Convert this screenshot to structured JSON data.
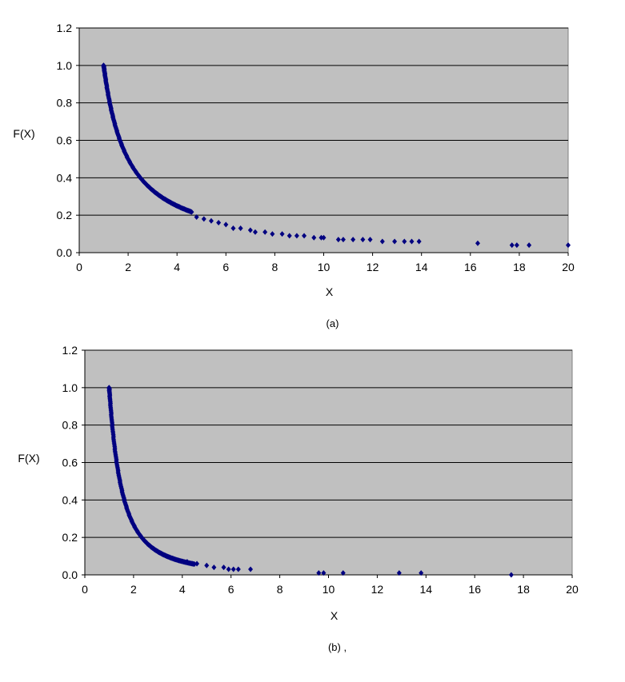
{
  "chart_data": [
    {
      "type": "scatter",
      "caption": "(a)",
      "xlabel": "X",
      "ylabel": "F(X)",
      "xlim": [
        0,
        20
      ],
      "ylim": [
        0,
        1.2
      ],
      "xticks": [
        "0",
        "2",
        "4",
        "6",
        "8",
        "10",
        "12",
        "14",
        "16",
        "18",
        "20"
      ],
      "yticks": [
        "0.0",
        "0.2",
        "0.4",
        "0.6",
        "0.8",
        "1.0",
        "1.2"
      ],
      "grid": "horizontal",
      "plot_color": "#c0c0c0",
      "marker_color": "#000080",
      "curve_exponent": 1.0,
      "curve_x_range": [
        1.0,
        4.6
      ],
      "points": [
        [
          4.8,
          0.19
        ],
        [
          5.1,
          0.18
        ],
        [
          5.4,
          0.17
        ],
        [
          5.7,
          0.16
        ],
        [
          6.0,
          0.15
        ],
        [
          6.3,
          0.13
        ],
        [
          6.6,
          0.13
        ],
        [
          7.0,
          0.12
        ],
        [
          7.2,
          0.11
        ],
        [
          7.6,
          0.11
        ],
        [
          7.9,
          0.1
        ],
        [
          8.3,
          0.1
        ],
        [
          8.6,
          0.09
        ],
        [
          8.9,
          0.09
        ],
        [
          9.2,
          0.09
        ],
        [
          9.6,
          0.08
        ],
        [
          9.9,
          0.08
        ],
        [
          10.0,
          0.08
        ],
        [
          10.6,
          0.07
        ],
        [
          10.8,
          0.07
        ],
        [
          11.2,
          0.07
        ],
        [
          11.6,
          0.07
        ],
        [
          11.9,
          0.07
        ],
        [
          12.4,
          0.06
        ],
        [
          12.9,
          0.06
        ],
        [
          13.3,
          0.06
        ],
        [
          13.6,
          0.06
        ],
        [
          13.9,
          0.06
        ],
        [
          16.3,
          0.05
        ],
        [
          17.7,
          0.04
        ],
        [
          17.9,
          0.04
        ],
        [
          18.4,
          0.04
        ],
        [
          20.0,
          0.04
        ]
      ]
    },
    {
      "type": "scatter",
      "caption": "(b) ,",
      "xlabel": "X",
      "ylabel": "F(X)",
      "xlim": [
        0,
        20
      ],
      "ylim": [
        0,
        1.2
      ],
      "xticks": [
        "0",
        "2",
        "4",
        "6",
        "8",
        "10",
        "12",
        "14",
        "16",
        "18",
        "20"
      ],
      "yticks": [
        "0.0",
        "0.2",
        "0.4",
        "0.6",
        "0.8",
        "1.0",
        "1.2"
      ],
      "grid": "horizontal",
      "plot_color": "#c0c0c0",
      "marker_color": "#000080",
      "curve_exponent": 1.9,
      "curve_x_range": [
        1.0,
        4.5
      ],
      "points": [
        [
          4.2,
          0.07
        ],
        [
          4.4,
          0.06
        ],
        [
          4.6,
          0.06
        ],
        [
          5.0,
          0.05
        ],
        [
          5.3,
          0.04
        ],
        [
          5.7,
          0.04
        ],
        [
          5.9,
          0.03
        ],
        [
          6.1,
          0.03
        ],
        [
          6.3,
          0.03
        ],
        [
          6.8,
          0.03
        ],
        [
          9.6,
          0.01
        ],
        [
          9.8,
          0.01
        ],
        [
          10.6,
          0.01
        ],
        [
          12.9,
          0.01
        ],
        [
          13.8,
          0.01
        ],
        [
          17.5,
          0.0
        ]
      ]
    }
  ]
}
